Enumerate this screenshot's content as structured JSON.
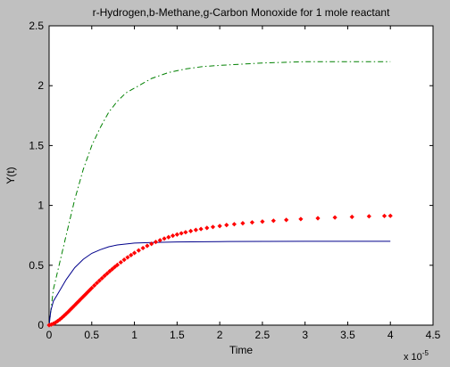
{
  "chart_data": {
    "type": "line",
    "title": "r-Hydrogen,b-Methane,g-Carbon Monoxide for 1 mole reactant",
    "xlabel": "Time",
    "ylabel": "Y(t)",
    "x_multiplier_label": "x 10",
    "x_multiplier_exponent": "-5",
    "xlim": [
      0,
      4.5
    ],
    "ylim": [
      0,
      2.5
    ],
    "x_ticks": [
      0,
      0.5,
      1,
      1.5,
      2,
      2.5,
      3,
      3.5,
      4,
      4.5
    ],
    "x_tick_labels": [
      "0",
      "0.5",
      "1",
      "1.5",
      "2",
      "2.5",
      "3",
      "3.5",
      "4",
      "4.5"
    ],
    "y_ticks": [
      0,
      0.5,
      1,
      1.5,
      2,
      2.5
    ],
    "y_tick_labels": [
      "0",
      "0.5",
      "1",
      "1.5",
      "2",
      "2.5"
    ],
    "grid": false,
    "legend": "none",
    "series": [
      {
        "color": "#008000",
        "style": "dashdot",
        "x": [
          0,
          0.05,
          0.1,
          0.2,
          0.3,
          0.4,
          0.5,
          0.6,
          0.7,
          0.8,
          0.9,
          1.0,
          1.2,
          1.4,
          1.6,
          1.8,
          2.0,
          2.5,
          3.0,
          3.5,
          4.0
        ],
        "y": [
          0,
          0.3,
          0.45,
          0.75,
          1.05,
          1.3,
          1.5,
          1.65,
          1.78,
          1.87,
          1.94,
          1.98,
          2.06,
          2.11,
          2.14,
          2.16,
          2.17,
          2.19,
          2.2,
          2.2,
          2.2
        ]
      },
      {
        "color": "#00008b",
        "style": "solid",
        "x": [
          0,
          0.02,
          0.05,
          0.1,
          0.2,
          0.3,
          0.4,
          0.5,
          0.6,
          0.7,
          0.8,
          1.0,
          1.2,
          1.5,
          2.0,
          3.0,
          4.0
        ],
        "y": [
          0,
          0.12,
          0.2,
          0.26,
          0.38,
          0.48,
          0.55,
          0.6,
          0.63,
          0.655,
          0.67,
          0.685,
          0.69,
          0.695,
          0.698,
          0.7,
          0.7
        ]
      },
      {
        "color": "#ff0000",
        "style": "diamond",
        "x": [
          0,
          0.025,
          0.05,
          0.075,
          0.1,
          0.125,
          0.15,
          0.175,
          0.2,
          0.225,
          0.25,
          0.275,
          0.3,
          0.325,
          0.35,
          0.375,
          0.4,
          0.425,
          0.45,
          0.475,
          0.5,
          0.53,
          0.56,
          0.59,
          0.62,
          0.65,
          0.68,
          0.71,
          0.74,
          0.77,
          0.8,
          0.84,
          0.88,
          0.92,
          0.96,
          1.0,
          1.05,
          1.1,
          1.15,
          1.2,
          1.25,
          1.3,
          1.35,
          1.4,
          1.45,
          1.5,
          1.55,
          1.6,
          1.66,
          1.72,
          1.78,
          1.85,
          1.92,
          2.0,
          2.08,
          2.17,
          2.27,
          2.38,
          2.5,
          2.63,
          2.78,
          2.95,
          3.15,
          3.35,
          3.55,
          3.75,
          3.93,
          4.0
        ],
        "y": [
          0,
          0.005,
          0.012,
          0.022,
          0.034,
          0.047,
          0.062,
          0.078,
          0.095,
          0.112,
          0.13,
          0.148,
          0.166,
          0.184,
          0.202,
          0.22,
          0.238,
          0.256,
          0.274,
          0.292,
          0.31,
          0.331,
          0.352,
          0.372,
          0.392,
          0.412,
          0.431,
          0.45,
          0.468,
          0.486,
          0.503,
          0.525,
          0.546,
          0.566,
          0.585,
          0.603,
          0.624,
          0.644,
          0.662,
          0.679,
          0.695,
          0.709,
          0.723,
          0.735,
          0.747,
          0.757,
          0.767,
          0.776,
          0.786,
          0.795,
          0.803,
          0.812,
          0.82,
          0.828,
          0.836,
          0.843,
          0.851,
          0.858,
          0.865,
          0.872,
          0.879,
          0.886,
          0.893,
          0.899,
          0.904,
          0.909,
          0.912,
          0.913
        ]
      }
    ]
  }
}
